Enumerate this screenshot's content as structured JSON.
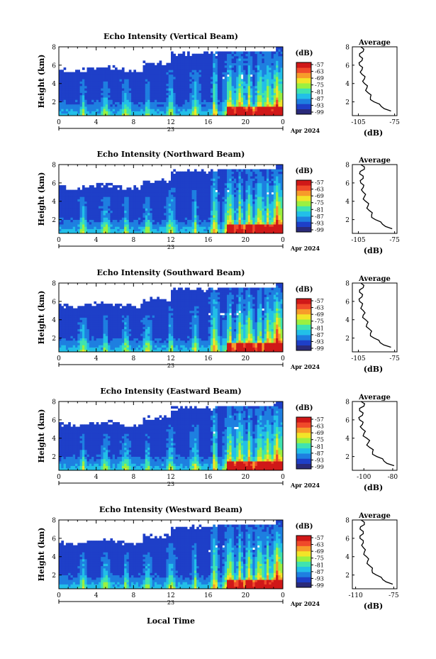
{
  "figure": {
    "x_unit_label": "Apr 2024",
    "date_label": "23",
    "xlabel_bottom": "Local Time",
    "colorbar_unit": "(dB)",
    "colorbar_ticks": [
      "-57",
      "-63",
      "-69",
      "-75",
      "-81",
      "-87",
      "-93",
      "-99"
    ],
    "colorbar_range": [
      -99,
      -57
    ],
    "colormap": [
      "#2a2a7a",
      "#1e3fc8",
      "#1e7fe0",
      "#22bfe8",
      "#3fe3b0",
      "#9bf040",
      "#f2e428",
      "#f79b2a",
      "#f04a2a",
      "#d01818"
    ]
  },
  "chart_data": [
    {
      "type": "heatmap",
      "title": "Echo Intensity (Vertical Beam)",
      "ylabel": "Height (km)",
      "x_ticks": [
        "0",
        "4",
        "8",
        "12",
        "16",
        "20",
        "0"
      ],
      "y_ticks": [
        "2",
        "4",
        "6",
        "8"
      ],
      "xlim": [
        0,
        24
      ],
      "ylim": [
        0.5,
        8
      ],
      "cell_values_scale": "dB",
      "profile": {
        "title": "Average",
        "xlabel": "(dB)",
        "x_ticks": [
          "-105",
          "-75"
        ],
        "xlim": [
          -110,
          -73
        ],
        "heights": [
          1,
          1.5,
          2,
          2.5,
          3,
          3.5,
          4,
          4.5,
          5,
          5.5,
          6,
          6.5,
          7,
          7.5,
          8
        ],
        "values": [
          -78,
          -86,
          -92,
          -95,
          -97,
          -98,
          -100,
          -100,
          -102,
          -102,
          -104,
          -102,
          -104,
          -101,
          -103
        ]
      }
    },
    {
      "type": "heatmap",
      "title": "Echo Intensity (Northward Beam)",
      "ylabel": "Height (km)",
      "x_ticks": [
        "0",
        "4",
        "8",
        "12",
        "16",
        "20",
        "0"
      ],
      "y_ticks": [
        "2",
        "4",
        "6",
        "8"
      ],
      "xlim": [
        0,
        24
      ],
      "ylim": [
        0.5,
        8
      ],
      "profile": {
        "title": "Average",
        "xlabel": "(dB)",
        "x_ticks": [
          "-105",
          "-75"
        ],
        "xlim": [
          -110,
          -73
        ],
        "heights": [
          1,
          1.5,
          2,
          2.5,
          3,
          3.5,
          4,
          4.5,
          5,
          5.5,
          6,
          6.5,
          7,
          7.5,
          8
        ],
        "values": [
          -77,
          -85,
          -91,
          -94,
          -96,
          -97,
          -99,
          -100,
          -101,
          -101,
          -103,
          -101,
          -104,
          -100,
          -103
        ]
      }
    },
    {
      "type": "heatmap",
      "title": "Echo Intensity (Southward Beam)",
      "ylabel": "Height (km)",
      "x_ticks": [
        "0",
        "4",
        "8",
        "12",
        "16",
        "20",
        "0"
      ],
      "y_ticks": [
        "2",
        "4",
        "6",
        "8"
      ],
      "xlim": [
        0,
        24
      ],
      "ylim": [
        0.5,
        8
      ],
      "profile": {
        "title": "Average",
        "xlabel": "(dB)",
        "x_ticks": [
          "-105",
          "-75"
        ],
        "xlim": [
          -110,
          -73
        ],
        "heights": [
          1,
          1.5,
          2,
          2.5,
          3,
          3.5,
          4,
          4.5,
          5,
          5.5,
          6,
          6.5,
          7,
          7.5,
          8
        ],
        "values": [
          -78,
          -87,
          -92,
          -95,
          -96,
          -98,
          -99,
          -101,
          -101,
          -102,
          -104,
          -102,
          -104,
          -101,
          -103
        ]
      }
    },
    {
      "type": "heatmap",
      "title": "Echo Intensity (Eastward Beam)",
      "ylabel": "Height (km)",
      "x_ticks": [
        "0",
        "4",
        "8",
        "12",
        "16",
        "20",
        "0"
      ],
      "y_ticks": [
        "2",
        "4",
        "6",
        "8"
      ],
      "xlim": [
        0,
        24
      ],
      "ylim": [
        0.5,
        8
      ],
      "profile": {
        "title": "Average",
        "xlabel": "(dB)",
        "x_ticks": [
          "-100",
          "-80"
        ],
        "xlim": [
          -108,
          -77
        ],
        "heights": [
          1,
          1.5,
          2,
          2.5,
          3,
          3.5,
          4,
          4.5,
          5,
          5.5,
          6,
          6.5,
          7,
          7.5,
          8
        ],
        "values": [
          -79,
          -86,
          -91,
          -94,
          -96,
          -97,
          -98,
          -100,
          -101,
          -101,
          -103,
          -101,
          -103,
          -100,
          -102
        ]
      }
    },
    {
      "type": "heatmap",
      "title": "Echo Intensity (Westward Beam)",
      "ylabel": "Height (km)",
      "x_ticks": [
        "0",
        "4",
        "8",
        "12",
        "16",
        "20",
        "0"
      ],
      "y_ticks": [
        "2",
        "4",
        "6",
        "8"
      ],
      "xlim": [
        0,
        24
      ],
      "ylim": [
        0.5,
        8
      ],
      "profile": {
        "title": "Average",
        "xlabel": "(dB)",
        "x_ticks": [
          "-110",
          "-75"
        ],
        "xlim": [
          -113,
          -72
        ],
        "heights": [
          1,
          1.5,
          2,
          2.5,
          3,
          3.5,
          4,
          4.5,
          5,
          5.5,
          6,
          6.5,
          7,
          7.5,
          8
        ],
        "values": [
          -76,
          -85,
          -91,
          -95,
          -97,
          -99,
          -100,
          -102,
          -103,
          -103,
          -106,
          -103,
          -106,
          -102,
          -105
        ]
      }
    }
  ]
}
